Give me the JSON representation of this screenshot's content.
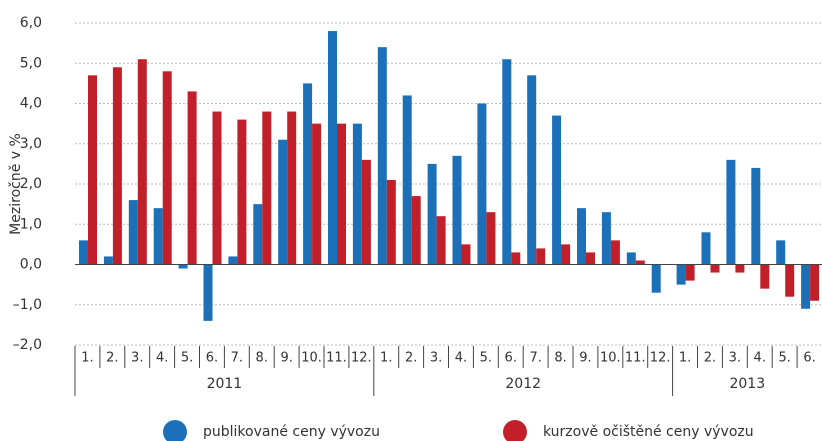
{
  "chart_data": {
    "type": "bar",
    "y_label": "Meziročně v %",
    "groups": [
      {
        "label": "2011",
        "categories": [
          "1.",
          "2.",
          "3.",
          "4.",
          "5.",
          "6.",
          "7.",
          "8.",
          "9.",
          "10.",
          "11.",
          "12."
        ]
      },
      {
        "label": "2012",
        "categories": [
          "1.",
          "2.",
          "3.",
          "4.",
          "5.",
          "6.",
          "7.",
          "8.",
          "9.",
          "10.",
          "11.",
          "12."
        ]
      },
      {
        "label": "2013",
        "categories": [
          "1.",
          "2.",
          "3.",
          "4.",
          "5.",
          "6."
        ]
      }
    ],
    "series": [
      {
        "name": "publikované ceny vývozu",
        "color": "#1b70b8",
        "values": [
          0.6,
          0.2,
          1.6,
          1.4,
          -0.1,
          -1.4,
          0.2,
          1.5,
          3.1,
          4.5,
          5.8,
          3.5,
          5.4,
          4.2,
          2.5,
          2.7,
          4.0,
          5.1,
          4.7,
          3.7,
          1.4,
          1.3,
          0.3,
          -0.7,
          -0.5,
          0.8,
          2.6,
          2.4,
          0.6,
          -1.1
        ]
      },
      {
        "name": "kurzově očištěné ceny vývozu",
        "color": "#c1202b",
        "values": [
          4.7,
          4.9,
          5.1,
          4.8,
          4.3,
          3.8,
          3.6,
          3.8,
          3.8,
          3.5,
          3.5,
          2.6,
          2.1,
          1.7,
          1.2,
          0.5,
          1.3,
          0.3,
          0.4,
          0.5,
          0.3,
          0.6,
          0.1,
          0,
          -0.4,
          -0.2,
          -0.2,
          -0.6,
          -0.8,
          -0.9
        ]
      }
    ],
    "ylim": [
      -2,
      6
    ],
    "yticks": [
      {
        "value": -2,
        "label": "–2,0"
      },
      {
        "value": -1,
        "label": "–1,0"
      },
      {
        "value": 0,
        "label": "0,0"
      },
      {
        "value": 1,
        "label": "1,0"
      },
      {
        "value": 2,
        "label": "2,0"
      },
      {
        "value": 3,
        "label": "3,0"
      },
      {
        "value": 4,
        "label": "4,0"
      },
      {
        "value": 5,
        "label": "5,0"
      },
      {
        "value": 6,
        "label": "6,0"
      }
    ],
    "grid": true
  }
}
